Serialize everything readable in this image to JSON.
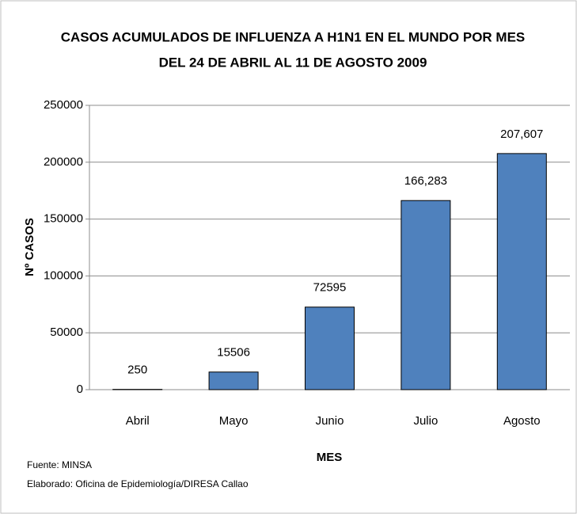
{
  "chart_data": {
    "type": "bar",
    "title": "CASOS ACUMULADOS DE INFLUENZA A H1N1 EN EL MUNDO  POR MES",
    "subtitle": "DEL 24 DE ABRIL AL 11 DE AGOSTO 2009",
    "x_label": "MES",
    "y_label": "Nº CASOS",
    "categories": [
      "Abril",
      "Mayo",
      "Junio",
      "Julio",
      "Agosto"
    ],
    "values": [
      250,
      15506,
      72595,
      166283,
      207607
    ],
    "value_labels": [
      "250",
      "15506",
      "72595",
      "166,283",
      "207,607"
    ],
    "color": "#4f81bd",
    "ylim": [
      0,
      250000
    ],
    "yticks": [
      0,
      50000,
      100000,
      150000,
      200000,
      250000
    ],
    "grid": true,
    "notes": [
      "Fuente: MINSA",
      "Elaborado: Oficina de Epidemiología/DIRESA Callao"
    ]
  }
}
